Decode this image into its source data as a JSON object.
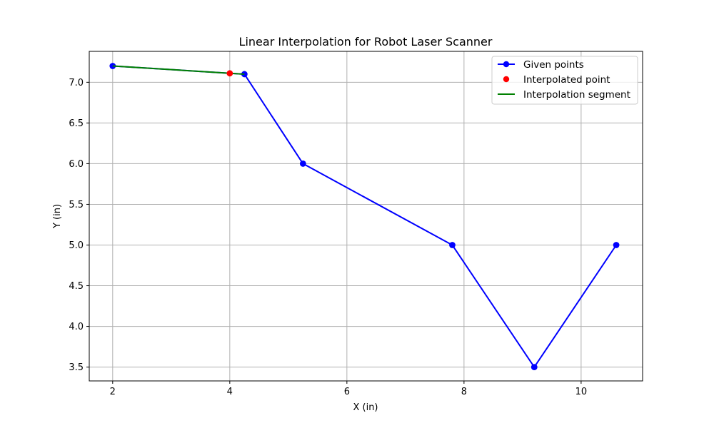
{
  "chart_data": {
    "type": "line",
    "title": "Linear Interpolation for Robot Laser Scanner",
    "xlabel": "X (in)",
    "ylabel": "Y (in)",
    "xlim": [
      1.6,
      11.05
    ],
    "ylim": [
      3.33,
      7.38
    ],
    "xticks": [
      2,
      4,
      6,
      8,
      10
    ],
    "yticks": [
      3.5,
      4.0,
      4.5,
      5.0,
      5.5,
      6.0,
      6.5,
      7.0
    ],
    "xtick_labels": [
      "2",
      "4",
      "6",
      "8",
      "10"
    ],
    "ytick_labels": [
      "3.5",
      "4.0",
      "4.5",
      "5.0",
      "5.5",
      "6.0",
      "6.5",
      "7.0"
    ],
    "grid": true,
    "legend_position": "top-right",
    "series": [
      {
        "name": "Given points",
        "style": "line-marker",
        "color": "#0000ff",
        "x": [
          2.0,
          4.25,
          5.25,
          7.8,
          9.2,
          10.6
        ],
        "y": [
          7.2,
          7.1,
          6.0,
          5.0,
          3.5,
          5.0
        ]
      },
      {
        "name": "Interpolated point",
        "style": "scatter",
        "color": "#ff0000",
        "x": [
          4.0
        ],
        "y": [
          7.11
        ]
      },
      {
        "name": "Interpolation segment",
        "style": "line",
        "color": "#008000",
        "x": [
          2.0,
          4.25
        ],
        "y": [
          7.2,
          7.1
        ]
      }
    ]
  }
}
